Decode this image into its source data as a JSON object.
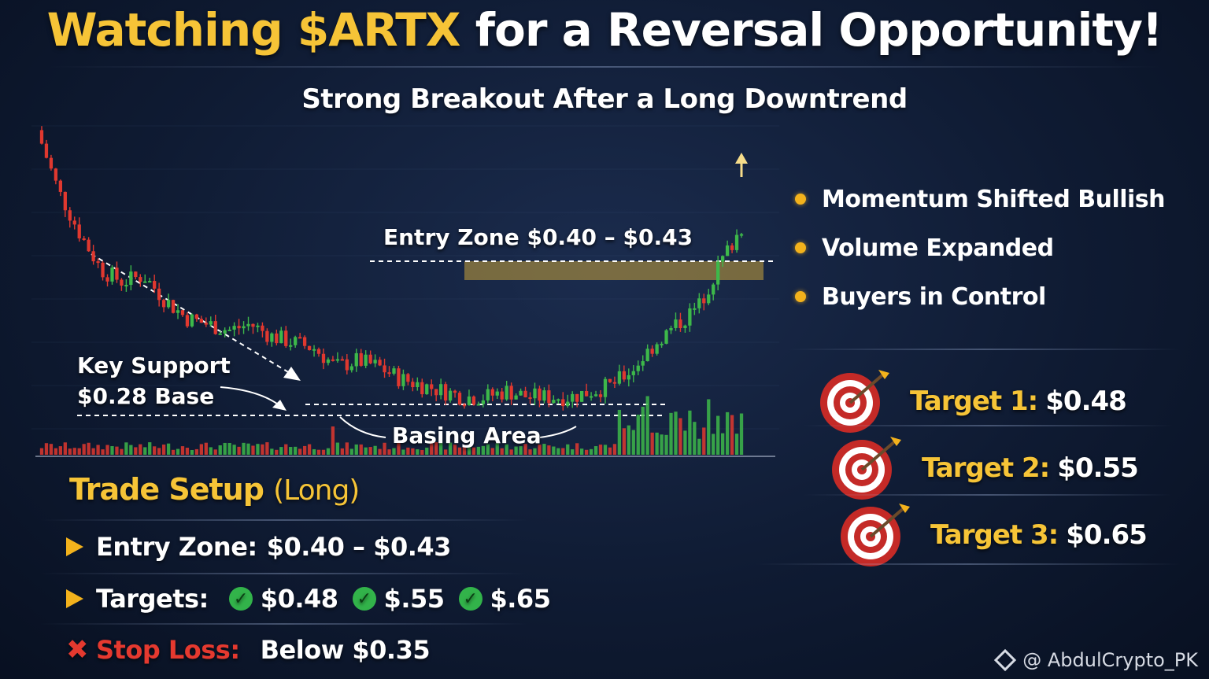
{
  "title": {
    "highlight": "Watching $ARTX",
    "rest": "for a Reversal Opportunity!"
  },
  "subtitle": "Strong Breakout After a Long Downtrend",
  "chart": {
    "entry_zone_label": "Entry Zone  $0.40 – $0.43",
    "key_support_line1": "Key Support",
    "key_support_line2": "$0.28 Base",
    "basing_area": "Basing Area"
  },
  "chart_data": {
    "type": "candlestick",
    "price_path": [
      0.72,
      0.62,
      0.55,
      0.49,
      0.47,
      0.48,
      0.44,
      0.41,
      0.4,
      0.39,
      0.4,
      0.38,
      0.37,
      0.36,
      0.33,
      0.34,
      0.33,
      0.31,
      0.3,
      0.29,
      0.28,
      0.28,
      0.29,
      0.28,
      0.28,
      0.28,
      0.29,
      0.3,
      0.33,
      0.37,
      0.4,
      0.43,
      0.5,
      0.56
    ],
    "levels": {
      "entry_zone": [
        0.4,
        0.43
      ],
      "key_support": 0.28
    },
    "colors": {
      "bull": "#3db84a",
      "bear": "#e0382f",
      "entry_band": "#c9a23a"
    }
  },
  "bullets": [
    "Momentum Shifted Bullish",
    "Volume Expanded",
    "Buyers in Control"
  ],
  "targets": [
    {
      "label": "Target 1:",
      "value": "$0.48"
    },
    {
      "label": "Target 2:",
      "value": "$0.55"
    },
    {
      "label": "Target 3:",
      "value": "$0.65"
    }
  ],
  "setup": {
    "title": "Trade Setup",
    "title_sub": "(Long)",
    "entry_label": "Entry Zone:",
    "entry_value": "$0.40 – $0.43",
    "targets_label": "Targets:",
    "target_values": [
      "$0.48",
      "$.55",
      "$.65"
    ],
    "stop_label": "Stop Loss:",
    "stop_value": "Below $0.35"
  },
  "watermark": "@ AbdulCrypto_PK",
  "colors": {
    "accent": "#f6c437",
    "stop": "#e5392f",
    "check": "#32b34a"
  }
}
